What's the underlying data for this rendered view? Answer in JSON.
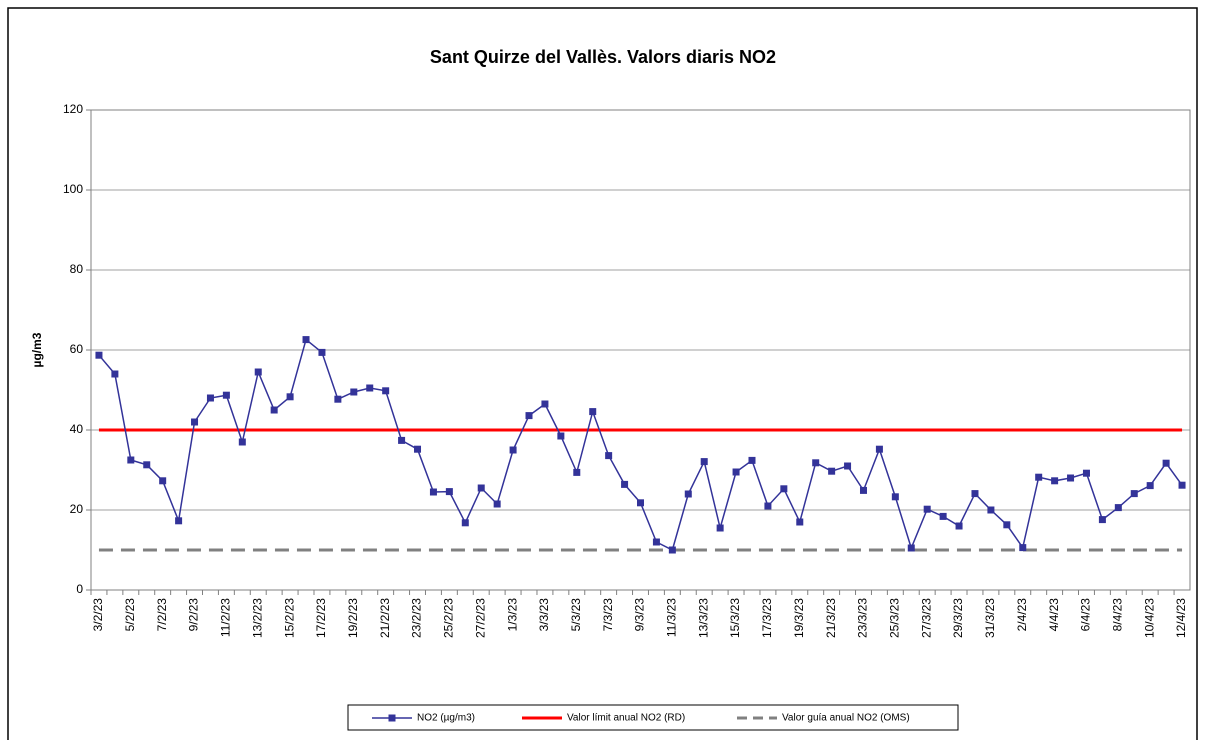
{
  "chart_data": {
    "type": "line",
    "title": "Sant Quirze del Vallès. Valors diaris NO2",
    "y_label": "µg/m3",
    "categories": [
      "3/2/23",
      null,
      "5/2/23",
      null,
      "7/2/23",
      null,
      "9/2/23",
      null,
      "11/2/23",
      null,
      "13/2/23",
      null,
      "15/2/23",
      null,
      "17/2/23",
      null,
      "19/2/23",
      null,
      "21/2/23",
      null,
      "23/2/23",
      null,
      "25/2/23",
      null,
      "27/2/23",
      null,
      "1/3/23",
      null,
      "3/3/23",
      null,
      "5/3/23",
      null,
      "7/3/23",
      null,
      "9/3/23",
      null,
      "11/3/23",
      null,
      "13/3/23",
      null,
      "15/3/23",
      null,
      "17/3/23",
      null,
      "19/3/23",
      null,
      "21/3/23",
      null,
      "23/3/23",
      null,
      "25/3/23",
      null,
      "27/3/23",
      null,
      "29/3/23",
      null,
      "31/3/23",
      null,
      "2/4/23",
      null,
      "4/4/23",
      null,
      "6/4/23",
      null,
      "8/4/23",
      null,
      "10/4/23",
      null,
      "12/4/23"
    ],
    "series": [
      {
        "name": "NO2 (µg/m3)",
        "color": "#333399",
        "values": [
          58.7,
          54,
          32.5,
          31.3,
          27.3,
          17.3,
          42,
          48,
          48.7,
          37,
          54.5,
          45,
          48.3,
          62.6,
          59.4,
          47.7,
          49.5,
          50.5,
          49.8,
          37.4,
          35.2,
          24.5,
          24.6,
          16.8,
          25.5,
          21.5,
          35,
          43.6,
          46.5,
          38.5,
          29.4,
          44.6,
          33.6,
          26.4,
          21.8,
          12,
          10,
          24,
          32.1,
          15.5,
          29.5,
          32.4,
          21,
          25.3,
          17,
          31.8,
          29.7,
          31,
          24.9,
          35.2,
          23.3,
          10.5,
          20.2,
          18.4,
          16,
          24.1,
          20,
          16.3,
          10.6,
          28.2,
          27.3,
          28,
          29.2,
          17.6,
          20.6,
          24.1,
          26.1,
          31.7,
          26.2
        ]
      }
    ],
    "reference_lines": [
      {
        "name": "Valor límit anual NO2 (RD)",
        "color": "#ff0000",
        "value": 40,
        "dashed": false
      },
      {
        "name": "Valor guía anual NO2 (OMS)",
        "color": "#808080",
        "value": 10,
        "dashed": true
      }
    ],
    "ylim": [
      0,
      120
    ],
    "yticks": [
      0,
      20,
      40,
      60,
      80,
      100,
      120
    ],
    "grid": true,
    "legend": "bottom"
  }
}
